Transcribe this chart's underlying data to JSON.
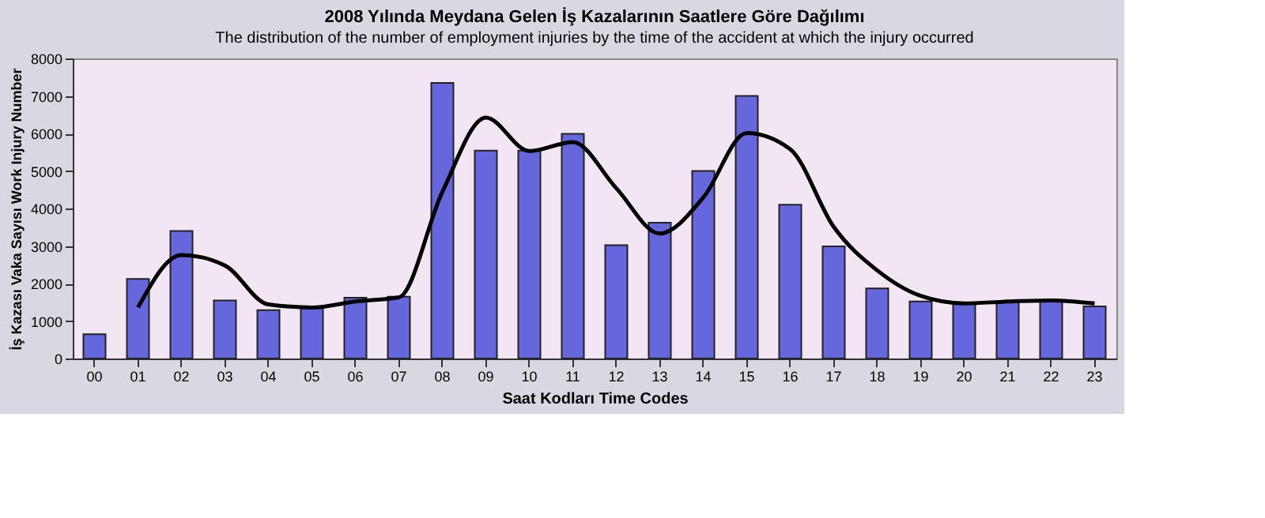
{
  "chart_data": {
    "type": "bar",
    "title": "2008 Yılında Meydana Gelen İş Kazalarının Saatlere Göre Dağılımı",
    "subtitle": "The distribution of the number of employment injuries by the time of the accident at which the injury occurred",
    "xlabel": "Saat Kodları Time Codes",
    "ylabel": "İş Kazası Vaka Sayısı Work Injury Number",
    "categories": [
      "00",
      "01",
      "02",
      "03",
      "04",
      "05",
      "06",
      "07",
      "08",
      "09",
      "10",
      "11",
      "12",
      "13",
      "14",
      "15",
      "16",
      "17",
      "18",
      "19",
      "20",
      "21",
      "22",
      "23"
    ],
    "series": [
      {
        "color": "#6666dd",
        "values": [
          650,
          2120,
          3400,
          1550,
          1290,
          1390,
          1620,
          1650,
          7350,
          5540,
          5540,
          5990,
          3020,
          3620,
          5000,
          7000,
          4100,
          2990,
          1870,
          1520,
          1450,
          1500,
          1520,
          1390
        ]
      },
      {
        "type": "line",
        "color": "#000000",
        "values": [
          null,
          1360,
          2760,
          2480,
          1440,
          1360,
          1520,
          1630,
          4440,
          6420,
          5530,
          5770,
          4540,
          3330,
          4290,
          6010,
          5580,
          3510,
          2350,
          1670,
          1470,
          1520,
          1550,
          1470
        ]
      }
    ],
    "ylim": [
      0,
      8000
    ],
    "yticks": [
      0,
      1000,
      2000,
      3000,
      4000,
      5000,
      6000,
      7000,
      8000
    ],
    "grid": false,
    "marker": "none",
    "line_style": "solid"
  }
}
